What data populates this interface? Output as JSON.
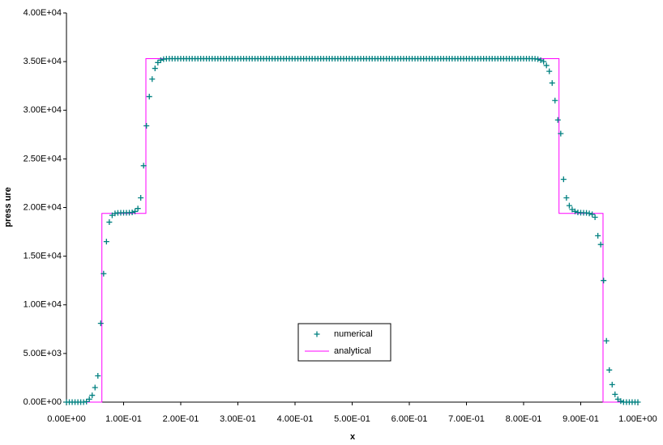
{
  "chart_data": {
    "type": "scatter",
    "xlabel": "x",
    "ylabel": "press ure",
    "xlim": [
      0,
      1
    ],
    "ylim": [
      0,
      40000
    ],
    "xticks": [
      {
        "value": 0,
        "label": "0.00E+00"
      },
      {
        "value": 0.1,
        "label": "1.00E-01"
      },
      {
        "value": 0.2,
        "label": "2.00E-01"
      },
      {
        "value": 0.3,
        "label": "3.00E-01"
      },
      {
        "value": 0.4,
        "label": "4.00E-01"
      },
      {
        "value": 0.5,
        "label": "5.00E-01"
      },
      {
        "value": 0.6,
        "label": "6.00E-01"
      },
      {
        "value": 0.7,
        "label": "7.00E-01"
      },
      {
        "value": 0.8,
        "label": "8.00E-01"
      },
      {
        "value": 0.9,
        "label": "9.00E-01"
      },
      {
        "value": 1,
        "label": "1.00E+00"
      }
    ],
    "yticks": [
      {
        "value": 0,
        "label": "0.00E+00"
      },
      {
        "value": 5000,
        "label": "5.00E+03"
      },
      {
        "value": 10000,
        "label": "1.00E+04"
      },
      {
        "value": 15000,
        "label": "1.50E+04"
      },
      {
        "value": 20000,
        "label": "2.00E+04"
      },
      {
        "value": 25000,
        "label": "2.50E+04"
      },
      {
        "value": 30000,
        "label": "3.00E+04"
      },
      {
        "value": 35000,
        "label": "3.50E+04"
      },
      {
        "value": 40000,
        "label": "4.00E+04"
      }
    ],
    "grid": false,
    "series": [
      {
        "name": "numerical",
        "type": "scatter",
        "color": "#008080",
        "x": [
          0,
          0.005,
          0.01,
          0.015,
          0.02,
          0.025,
          0.03,
          0.035,
          0.04,
          0.045,
          0.05,
          0.055,
          0.06,
          0.065,
          0.07,
          0.075,
          0.08,
          0.085,
          0.09,
          0.095,
          0.1,
          0.105,
          0.11,
          0.115,
          0.12,
          0.125,
          0.13,
          0.135,
          0.14,
          0.145,
          0.15,
          0.155,
          0.16,
          0.165,
          0.17,
          0.175,
          0.18,
          0.185,
          0.19,
          0.195,
          0.2,
          0.205,
          0.21,
          0.215,
          0.22,
          0.225,
          0.23,
          0.235,
          0.24,
          0.245,
          0.25,
          0.255,
          0.26,
          0.265,
          0.27,
          0.275,
          0.28,
          0.285,
          0.29,
          0.295,
          0.3,
          0.305,
          0.31,
          0.315,
          0.32,
          0.325,
          0.33,
          0.335,
          0.34,
          0.345,
          0.35,
          0.355,
          0.36,
          0.365,
          0.37,
          0.375,
          0.38,
          0.385,
          0.39,
          0.395,
          0.4,
          0.405,
          0.41,
          0.415,
          0.42,
          0.425,
          0.43,
          0.435,
          0.44,
          0.445,
          0.45,
          0.455,
          0.46,
          0.465,
          0.47,
          0.475,
          0.48,
          0.485,
          0.49,
          0.495,
          0.5,
          0.505,
          0.51,
          0.515,
          0.52,
          0.525,
          0.53,
          0.535,
          0.54,
          0.545,
          0.55,
          0.555,
          0.56,
          0.565,
          0.57,
          0.575,
          0.58,
          0.585,
          0.59,
          0.595,
          0.6,
          0.605,
          0.61,
          0.615,
          0.62,
          0.625,
          0.63,
          0.635,
          0.64,
          0.645,
          0.65,
          0.655,
          0.66,
          0.665,
          0.67,
          0.675,
          0.68,
          0.685,
          0.69,
          0.695,
          0.7,
          0.705,
          0.71,
          0.715,
          0.72,
          0.725,
          0.73,
          0.735,
          0.74,
          0.745,
          0.75,
          0.755,
          0.76,
          0.765,
          0.77,
          0.775,
          0.78,
          0.785,
          0.79,
          0.795,
          0.8,
          0.805,
          0.81,
          0.815,
          0.82,
          0.825,
          0.83,
          0.835,
          0.84,
          0.845,
          0.85,
          0.855,
          0.86,
          0.865,
          0.87,
          0.875,
          0.88,
          0.885,
          0.89,
          0.895,
          0.9,
          0.905,
          0.91,
          0.915,
          0.92,
          0.925,
          0.93,
          0.935,
          0.94,
          0.945,
          0.95,
          0.955,
          0.96,
          0.965,
          0.97,
          0.975,
          0.98,
          0.985,
          0.99,
          0.995,
          1
        ],
        "values": [
          0,
          0,
          0,
          0,
          0,
          0,
          0,
          50,
          300,
          700,
          1500,
          2700,
          8100,
          13200,
          16500,
          18500,
          19200,
          19400,
          19450,
          19460,
          19460,
          19460,
          19470,
          19500,
          19600,
          19900,
          21000,
          24300,
          28400,
          31400,
          33200,
          34300,
          34900,
          35150,
          35250,
          35290,
          35300,
          35300,
          35300,
          35300,
          35300,
          35300,
          35300,
          35300,
          35300,
          35300,
          35300,
          35300,
          35300,
          35300,
          35300,
          35300,
          35300,
          35300,
          35300,
          35300,
          35300,
          35300,
          35300,
          35300,
          35300,
          35300,
          35300,
          35300,
          35300,
          35300,
          35300,
          35300,
          35300,
          35300,
          35300,
          35300,
          35300,
          35300,
          35300,
          35300,
          35300,
          35300,
          35300,
          35300,
          35300,
          35300,
          35300,
          35300,
          35300,
          35300,
          35300,
          35300,
          35300,
          35300,
          35300,
          35300,
          35300,
          35300,
          35300,
          35300,
          35300,
          35300,
          35300,
          35300,
          35300,
          35300,
          35300,
          35300,
          35300,
          35300,
          35300,
          35300,
          35300,
          35300,
          35300,
          35300,
          35300,
          35300,
          35300,
          35300,
          35300,
          35300,
          35300,
          35300,
          35300,
          35300,
          35300,
          35300,
          35300,
          35300,
          35300,
          35300,
          35300,
          35300,
          35300,
          35300,
          35300,
          35300,
          35300,
          35300,
          35300,
          35300,
          35300,
          35300,
          35300,
          35300,
          35300,
          35300,
          35300,
          35300,
          35300,
          35300,
          35300,
          35300,
          35300,
          35300,
          35300,
          35300,
          35300,
          35300,
          35300,
          35300,
          35300,
          35300,
          35300,
          35300,
          35300,
          35300,
          35290,
          35250,
          35150,
          35000,
          34600,
          34000,
          32800,
          31000,
          29000,
          27600,
          22900,
          21000,
          20200,
          19800,
          19600,
          19500,
          19470,
          19460,
          19450,
          19400,
          19300,
          19000,
          17100,
          16200,
          12500,
          6300,
          3300,
          1800,
          800,
          300,
          100,
          0,
          0,
          0,
          0,
          0,
          0
        ]
      },
      {
        "name": "analytical",
        "type": "line",
        "color": "#ff00ff",
        "x": [
          0,
          0.062,
          0.062,
          0.139,
          0.139,
          0.862,
          0.862,
          0.939,
          0.939,
          1
        ],
        "values": [
          0,
          0,
          19400,
          19400,
          35300,
          35300,
          19400,
          19400,
          0,
          0
        ]
      }
    ]
  }
}
